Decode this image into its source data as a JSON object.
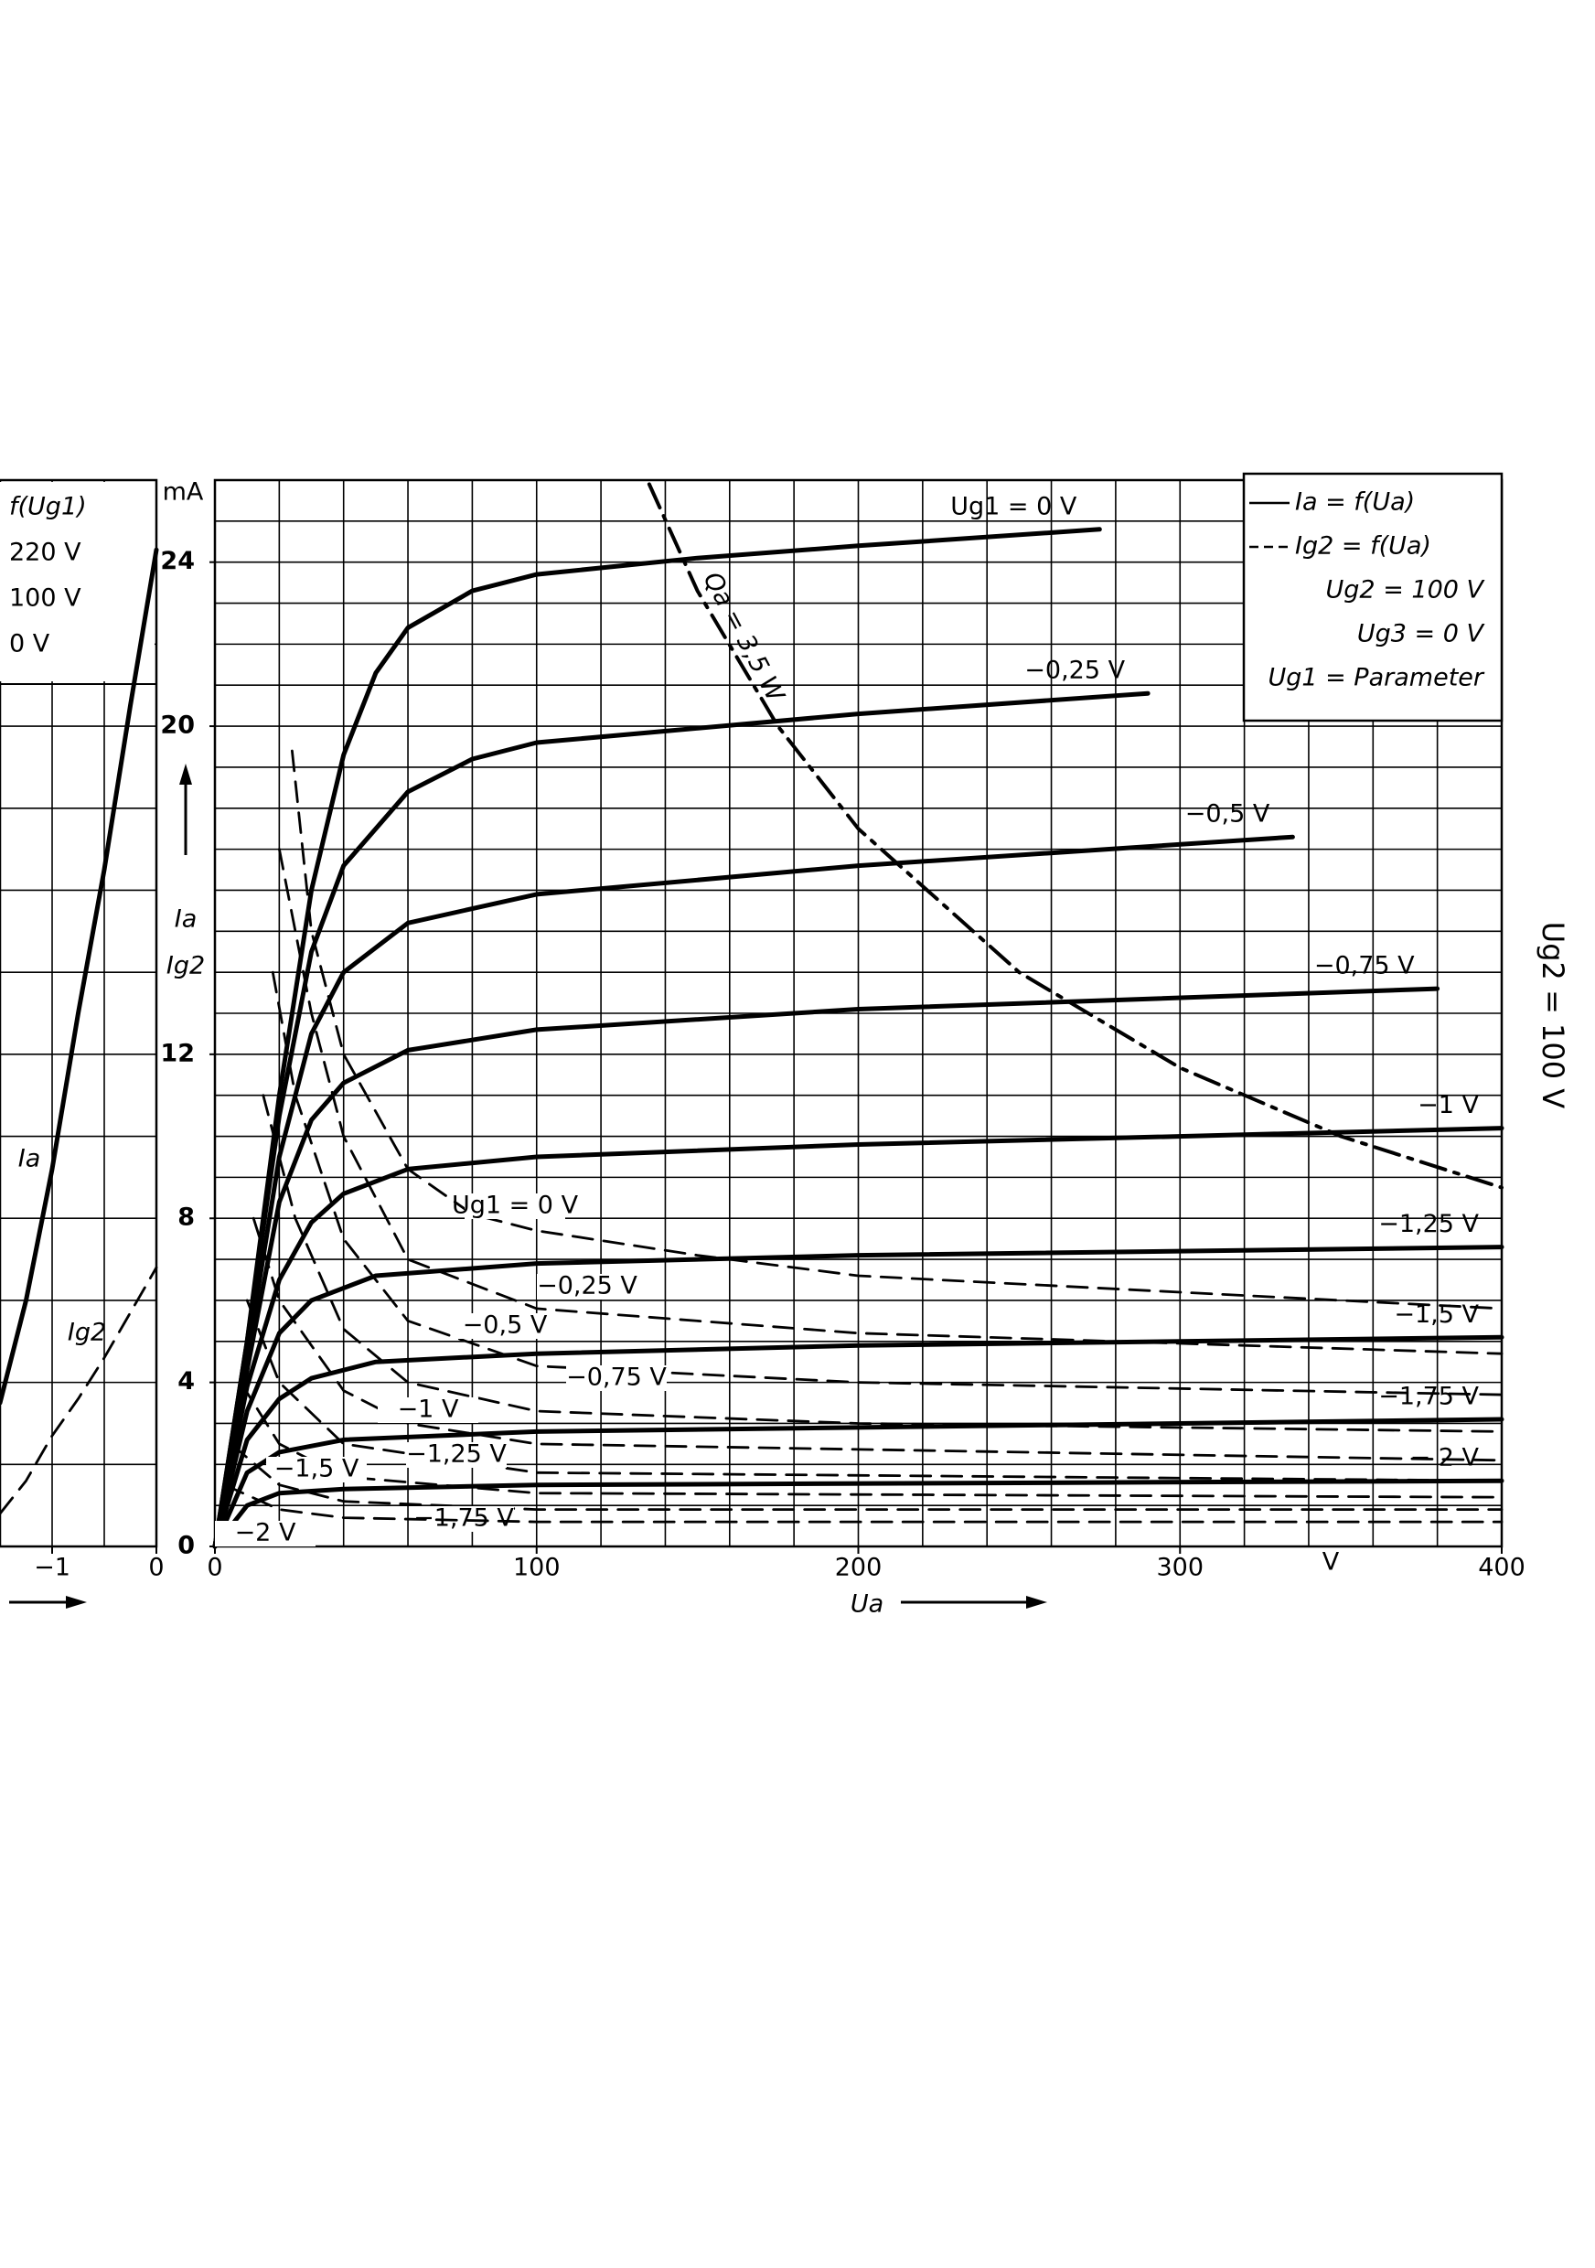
{
  "chart_data": [
    {
      "type": "line",
      "x_label": "Ua",
      "x_unit": "V",
      "y_label": "Ia",
      "y_label2": "Ig2",
      "y_unit": "mA",
      "side_label": "Ug2 = 100 V",
      "xlim": [
        0,
        400
      ],
      "xticks": [
        0,
        100,
        200,
        300,
        400
      ],
      "ylim": [
        0,
        26
      ],
      "yticks": [
        0,
        4,
        8,
        12,
        20,
        24
      ],
      "xgrid": [
        0,
        20,
        40,
        60,
        80,
        100,
        120,
        140,
        160,
        180,
        200,
        220,
        240,
        260,
        280,
        300,
        320,
        340,
        360,
        380,
        400
      ],
      "ygrid": [
        0,
        1,
        2,
        3,
        4,
        5,
        6,
        7,
        8,
        9,
        10,
        11,
        12,
        13,
        14,
        15,
        16,
        17,
        18,
        19,
        20,
        21,
        22,
        23,
        24,
        25,
        26
      ],
      "legend": {
        "corner": "upper right",
        "entries": [
          {
            "label": "Ia = f(Ua)",
            "style": "solid"
          },
          {
            "label": "Ig2 = f(Ua)",
            "style": "dashed"
          }
        ],
        "lines": [
          "Ug2 = 100 V",
          "Ug3 = 0 V",
          "Ug1 = Parameter"
        ]
      },
      "power_curve": {
        "name": "Qa = 3,5 W",
        "style": "dashdot",
        "color": "#000",
        "x": [
          135,
          150,
          175,
          200,
          250,
          300,
          350,
          400
        ],
        "values": [
          25.9,
          23.3,
          20,
          17.5,
          14,
          11.67,
          10,
          8.75
        ]
      },
      "series": [
        {
          "name": "Ug1 = 0 V",
          "quantity": "Ia",
          "style": "solid",
          "color": "#000",
          "x": [
            0,
            10,
            20,
            30,
            40,
            50,
            60,
            80,
            100,
            150,
            200,
            275
          ],
          "values": [
            0,
            5,
            11,
            16,
            19.3,
            21.3,
            22.4,
            23.3,
            23.7,
            24.1,
            24.4,
            24.8
          ]
        },
        {
          "name": "−0,25 V",
          "quantity": "Ia",
          "style": "solid",
          "color": "#000",
          "x": [
            0,
            10,
            20,
            30,
            40,
            60,
            80,
            100,
            200,
            290
          ],
          "values": [
            0,
            5,
            10.5,
            14.5,
            16.6,
            18.4,
            19.2,
            19.6,
            20.3,
            20.8
          ]
        },
        {
          "name": "−0,5 V",
          "quantity": "Ia",
          "style": "solid",
          "color": "#000",
          "x": [
            0,
            10,
            20,
            30,
            40,
            60,
            100,
            200,
            335
          ],
          "values": [
            0,
            4.6,
            9.5,
            12.5,
            14,
            15.2,
            15.9,
            16.6,
            17.3
          ]
        },
        {
          "name": "−0,75 V",
          "quantity": "Ia",
          "style": "solid",
          "color": "#000",
          "x": [
            0,
            10,
            20,
            30,
            40,
            60,
            100,
            200,
            380
          ],
          "values": [
            0,
            4.3,
            8.4,
            10.4,
            11.3,
            12.1,
            12.6,
            13.1,
            13.6
          ]
        },
        {
          "name": "−1 V",
          "quantity": "Ia",
          "style": "solid",
          "color": "#000",
          "x": [
            0,
            10,
            20,
            30,
            40,
            60,
            100,
            200,
            400
          ],
          "values": [
            0,
            3.9,
            6.5,
            7.9,
            8.6,
            9.2,
            9.5,
            9.8,
            10.2
          ]
        },
        {
          "name": "−1,25 V",
          "quantity": "Ia",
          "style": "solid",
          "color": "#000",
          "x": [
            0,
            10,
            20,
            30,
            50,
            100,
            200,
            400
          ],
          "values": [
            0,
            3.3,
            5.2,
            6,
            6.6,
            6.9,
            7.1,
            7.3
          ]
        },
        {
          "name": "−1,5 V",
          "quantity": "Ia",
          "style": "solid",
          "color": "#000",
          "x": [
            0,
            10,
            20,
            30,
            50,
            100,
            200,
            400
          ],
          "values": [
            0,
            2.6,
            3.6,
            4.1,
            4.5,
            4.7,
            4.9,
            5.1
          ]
        },
        {
          "name": "−1,75 V",
          "quantity": "Ia",
          "style": "solid",
          "color": "#000",
          "x": [
            0,
            10,
            20,
            40,
            100,
            200,
            400
          ],
          "values": [
            0,
            1.8,
            2.3,
            2.6,
            2.8,
            2.9,
            3.1
          ]
        },
        {
          "name": "− 2 V",
          "quantity": "Ia",
          "style": "solid",
          "color": "#000",
          "x": [
            0,
            10,
            20,
            40,
            100,
            400
          ],
          "values": [
            0,
            1,
            1.3,
            1.4,
            1.5,
            1.6
          ]
        },
        {
          "name": "Ug1 = 0 V",
          "quantity": "Ig2",
          "style": "dashed",
          "color": "#000",
          "x": [
            24,
            30,
            40,
            60,
            80,
            100,
            150,
            200,
            300,
            400
          ],
          "values": [
            19.4,
            15,
            12,
            9.2,
            8.1,
            7.7,
            7.1,
            6.6,
            6.2,
            5.8
          ]
        },
        {
          "name": "−0,25 V",
          "quantity": "Ig2",
          "style": "dashed",
          "color": "#000",
          "x": [
            20,
            30,
            40,
            60,
            100,
            200,
            400
          ],
          "values": [
            17,
            13,
            10,
            7,
            5.8,
            5.2,
            4.7
          ]
        },
        {
          "name": "−0,5 V",
          "quantity": "Ig2",
          "style": "dashed",
          "color": "#000",
          "x": [
            18,
            25,
            40,
            60,
            100,
            200,
            400
          ],
          "values": [
            14,
            11,
            7.5,
            5.5,
            4.4,
            4,
            3.7
          ]
        },
        {
          "name": "−0,75 V",
          "quantity": "Ig2",
          "style": "dashed",
          "color": "#000",
          "x": [
            15,
            25,
            40,
            60,
            100,
            200,
            400
          ],
          "values": [
            11,
            8,
            5.3,
            4,
            3.3,
            3,
            2.8
          ]
        },
        {
          "name": "−1 V",
          "quantity": "Ig2",
          "style": "dashed",
          "color": "#000",
          "x": [
            12,
            20,
            40,
            60,
            100,
            400
          ],
          "values": [
            8,
            6,
            3.8,
            3,
            2.5,
            2.1
          ]
        },
        {
          "name": "−1,25 V",
          "quantity": "Ig2",
          "style": "dashed",
          "color": "#000",
          "x": [
            10,
            20,
            40,
            100,
            400
          ],
          "values": [
            6,
            4,
            2.5,
            1.8,
            1.6
          ]
        },
        {
          "name": "−1,5 V",
          "quantity": "Ig2",
          "style": "dashed",
          "color": "#000",
          "x": [
            8,
            20,
            40,
            100,
            400
          ],
          "values": [
            4,
            2.5,
            1.7,
            1.3,
            1.2
          ]
        },
        {
          "name": "−1,75 V",
          "quantity": "Ig2",
          "style": "dashed",
          "color": "#000",
          "x": [
            5,
            20,
            40,
            100,
            400
          ],
          "values": [
            2.5,
            1.5,
            1.1,
            0.9,
            0.9
          ]
        },
        {
          "name": "−2 V",
          "quantity": "Ig2",
          "style": "dashed",
          "color": "#000",
          "x": [
            3,
            20,
            40,
            100,
            400
          ],
          "values": [
            1.5,
            0.9,
            0.7,
            0.6,
            0.6
          ]
        }
      ]
    },
    {
      "type": "line",
      "xlim": [
        -1.5,
        0
      ],
      "xticks": [
        {
          "value": -1,
          "label": "−1"
        },
        0
      ],
      "ylim": [
        0,
        26
      ],
      "xgrid": [
        -1.5,
        -1,
        -0.5,
        0
      ],
      "ygrid": [
        0,
        2,
        4,
        6,
        8,
        10,
        12,
        14,
        16,
        18,
        20,
        22,
        24,
        26
      ],
      "annotations": [
        "f(Ug1)",
        "220 V",
        "100 V",
        "0 V"
      ],
      "series": [
        {
          "name": "Ia",
          "style": "solid",
          "color": "#000",
          "x": [
            -1.5,
            -1.25,
            -1,
            -0.75,
            -0.5,
            -0.25,
            0
          ],
          "values": [
            3.5,
            6,
            9.2,
            13,
            16.5,
            20.5,
            24.3
          ]
        },
        {
          "name": "Ig2",
          "style": "dashed",
          "color": "#000",
          "x": [
            -1.5,
            -1.25,
            -1,
            -0.75,
            -0.5,
            -0.25,
            0
          ],
          "values": [
            0.8,
            1.6,
            2.7,
            3.6,
            4.6,
            5.7,
            6.8
          ]
        }
      ]
    }
  ]
}
